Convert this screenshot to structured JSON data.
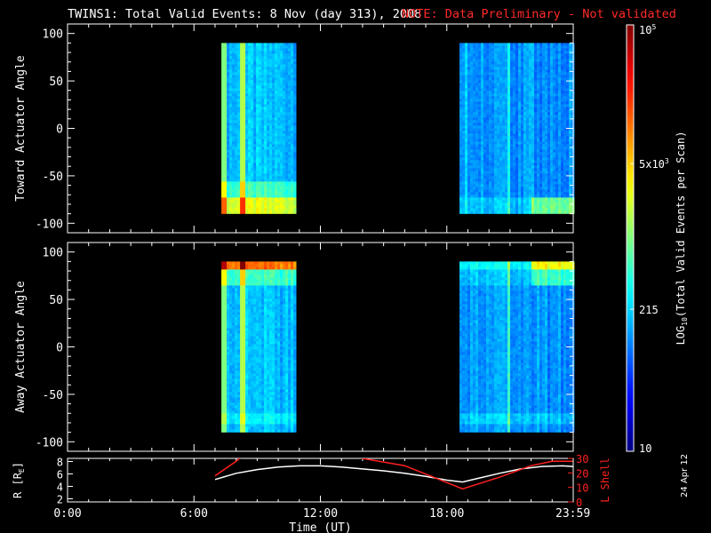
{
  "header": {
    "title": "TWINS1: Total Valid Events:  8 Nov (day 313), 2008",
    "note": "NOTE: Data Preliminary - Not validated"
  },
  "footer": {
    "side_date": "24 Apr 12"
  },
  "colors": {
    "background": "#000000",
    "note_red": "#ff2a2a",
    "rshell_white": "#ffffff",
    "lshell_red": "#ff2020"
  },
  "colorbar": {
    "label": "LOG10(Total Valid Events per Scan)",
    "label_main": "LOG",
    "label_sub": "10",
    "label_rest": "(Total Valid Events per Scan)",
    "ticks": [
      {
        "label": "10",
        "value": 10
      },
      {
        "label": "215",
        "value": 215
      },
      {
        "label": "5x103",
        "base": "5x10",
        "exp": "3",
        "value": 5000
      },
      {
        "label": "105",
        "base": "10",
        "exp": "5",
        "value": 100000
      }
    ],
    "scale": "log"
  },
  "chart_data": [
    {
      "type": "heatmap",
      "ylabel": "Toward Actuator Angle",
      "ylim": [
        -110,
        110
      ],
      "yticks": [
        100,
        50,
        0,
        -50,
        -100
      ],
      "ytick_labels": [
        "100",
        "50",
        "0",
        "-50",
        "-100"
      ],
      "xlim": [
        0,
        24
      ],
      "data_blocks": [
        {
          "t_start": 7.3,
          "t_end": 10.75,
          "angle_min": -88,
          "angle_max": 90
        },
        {
          "t_start": 18.6,
          "t_end": 23.95,
          "angle_min": -88,
          "angle_max": 90
        }
      ],
      "features": [
        {
          "desc": "bright stripe",
          "t": 8.3,
          "level": "high"
        },
        {
          "desc": "enhanced counts near bottom",
          "angle_range": [
            -88,
            -70
          ],
          "level": "high"
        }
      ]
    },
    {
      "type": "heatmap",
      "ylabel": "Away Actuator Angle",
      "ylim": [
        -110,
        110
      ],
      "yticks": [
        100,
        50,
        0,
        -50,
        -100
      ],
      "ytick_labels": [
        "100",
        "50",
        "0",
        "-50",
        "-100"
      ],
      "xlim": [
        0,
        24
      ],
      "data_blocks": [
        {
          "t_start": 7.3,
          "t_end": 10.75,
          "angle_min": -88,
          "angle_max": 90
        },
        {
          "t_start": 18.6,
          "t_end": 23.95,
          "angle_min": -88,
          "angle_max": 90
        }
      ],
      "features": [
        {
          "desc": "bright stripe",
          "t": 8.3,
          "level": "high"
        },
        {
          "desc": "enhanced counts near top",
          "angle_range": [
            80,
            90
          ],
          "level": "high"
        }
      ]
    },
    {
      "type": "line",
      "xlabel": "Time (UT)",
      "xlim": [
        0,
        24
      ],
      "xticks": [
        0,
        6,
        12,
        18,
        23.983
      ],
      "xtick_labels": [
        "0:00",
        "6:00",
        "12:00",
        "18:00",
        "23:59"
      ],
      "ylabel": "R [RE]",
      "ylabel_main": "R [R",
      "ylabel_sub": "E",
      "ylabel_end": "]",
      "ylim": [
        1.5,
        8.5
      ],
      "yticks": [
        2,
        4,
        6,
        8
      ],
      "ytick_labels": [
        "2",
        "4",
        "6",
        "8"
      ],
      "y2label": "L Shell",
      "y2lim": [
        0,
        30
      ],
      "y2ticks": [
        0,
        10,
        20,
        30
      ],
      "y2tick_labels": [
        "0",
        "10",
        "20",
        "30"
      ],
      "series": [
        {
          "name": "R [RE]",
          "axis": "left",
          "color": "#ffffff",
          "x": [
            7.0,
            8.0,
            9.0,
            10.0,
            11.0,
            12.0,
            13.0,
            14.0,
            15.0,
            16.0,
            17.0,
            18.0,
            18.75,
            19.5,
            20.5,
            21.5,
            22.5,
            23.5,
            23.98
          ],
          "y": [
            5.1,
            6.1,
            6.7,
            7.1,
            7.3,
            7.3,
            7.1,
            6.8,
            6.5,
            6.1,
            5.6,
            5.0,
            4.7,
            5.3,
            6.1,
            6.8,
            7.2,
            7.3,
            7.2
          ]
        },
        {
          "name": "L Shell",
          "axis": "right",
          "color": "#ff2020",
          "segments": [
            {
              "x": [
                7.0,
                8.0,
                8.4
              ],
              "y": [
                18,
                28,
                33
              ]
            },
            {
              "x": [
                13.5,
                14.0,
                16.0,
                18.75,
                20.5,
                22.0,
                23.0,
                23.98
              ],
              "y": [
                33,
                30,
                25,
                9,
                17,
                25,
                28,
                28
              ]
            }
          ]
        }
      ]
    }
  ]
}
